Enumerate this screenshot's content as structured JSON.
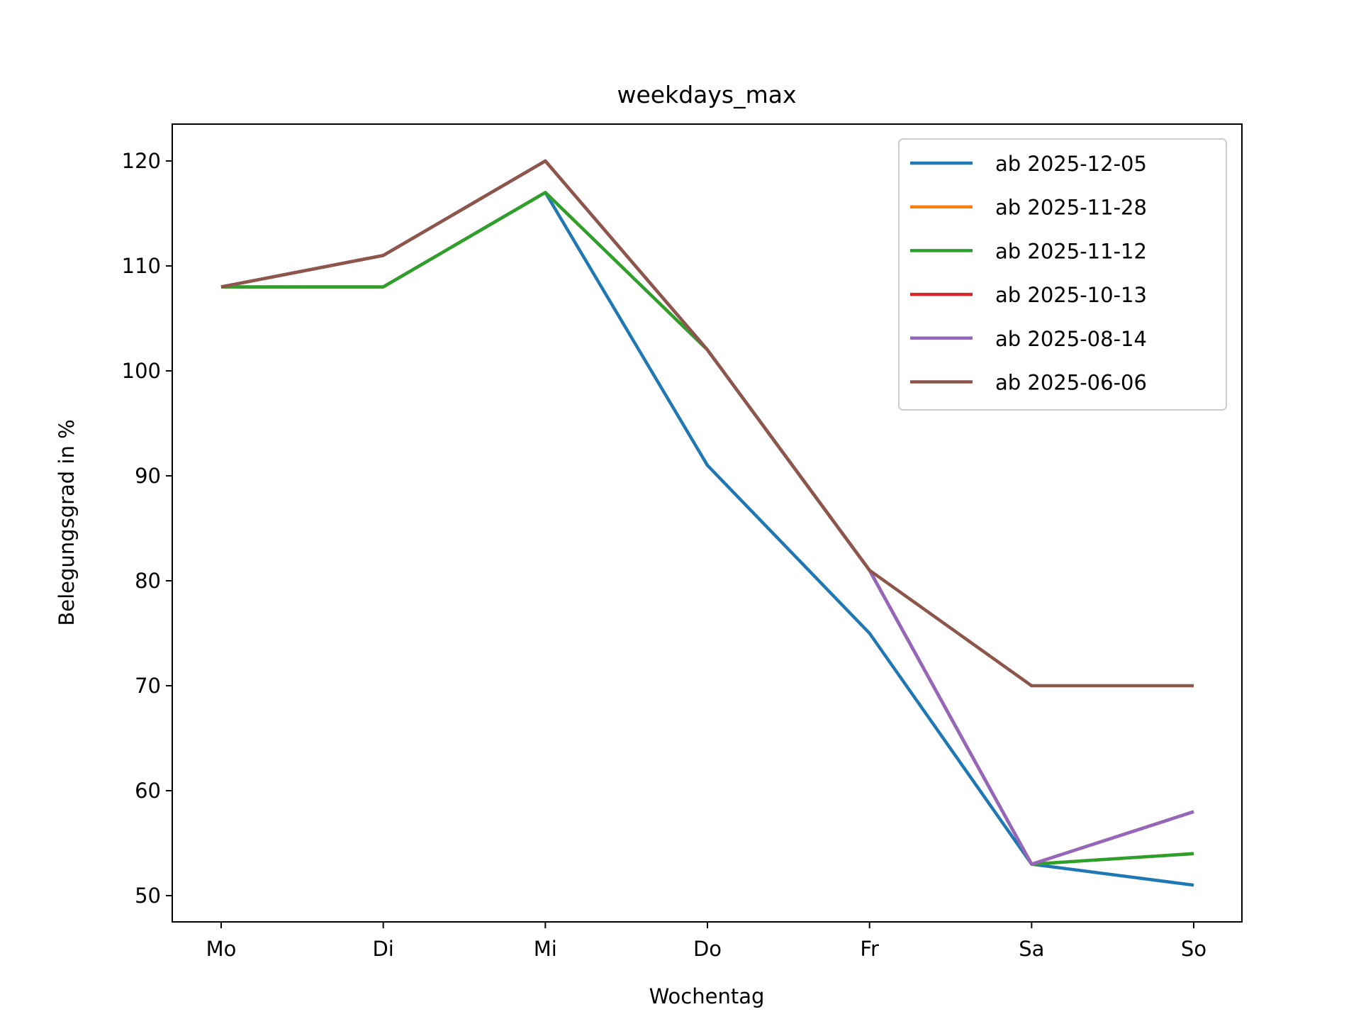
{
  "chart_data": {
    "type": "line",
    "title": "weekdays_max",
    "xlabel": "Wochentag",
    "ylabel": "Belegungsgrad in %",
    "categories": [
      "Mo",
      "Di",
      "Mi",
      "Do",
      "Fr",
      "Sa",
      "So"
    ],
    "yticks": [
      50,
      60,
      70,
      80,
      90,
      100,
      110,
      120
    ],
    "ylim": [
      47.5,
      123.5
    ],
    "legend_position": "top-right",
    "grid": false,
    "series": [
      {
        "name": "ab 2025-12-05",
        "color": "#1f77b4",
        "values": [
          108,
          108,
          117,
          91,
          75,
          53,
          51
        ]
      },
      {
        "name": "ab 2025-11-28",
        "color": "#ff7f0e",
        "values": [
          108,
          108,
          117,
          102,
          81,
          53,
          54
        ]
      },
      {
        "name": "ab 2025-11-12",
        "color": "#2ca02c",
        "values": [
          108,
          108,
          117,
          102,
          81,
          53,
          54
        ]
      },
      {
        "name": "ab 2025-10-13",
        "color": "#d62728",
        "values": [
          108,
          111,
          120,
          102,
          81,
          53,
          58
        ]
      },
      {
        "name": "ab 2025-08-14",
        "color": "#9467bd",
        "values": [
          108,
          111,
          120,
          102,
          81,
          53,
          58
        ]
      },
      {
        "name": "ab 2025-06-06",
        "color": "#8c564b",
        "values": [
          108,
          111,
          120,
          102,
          81,
          70,
          70
        ]
      }
    ]
  }
}
